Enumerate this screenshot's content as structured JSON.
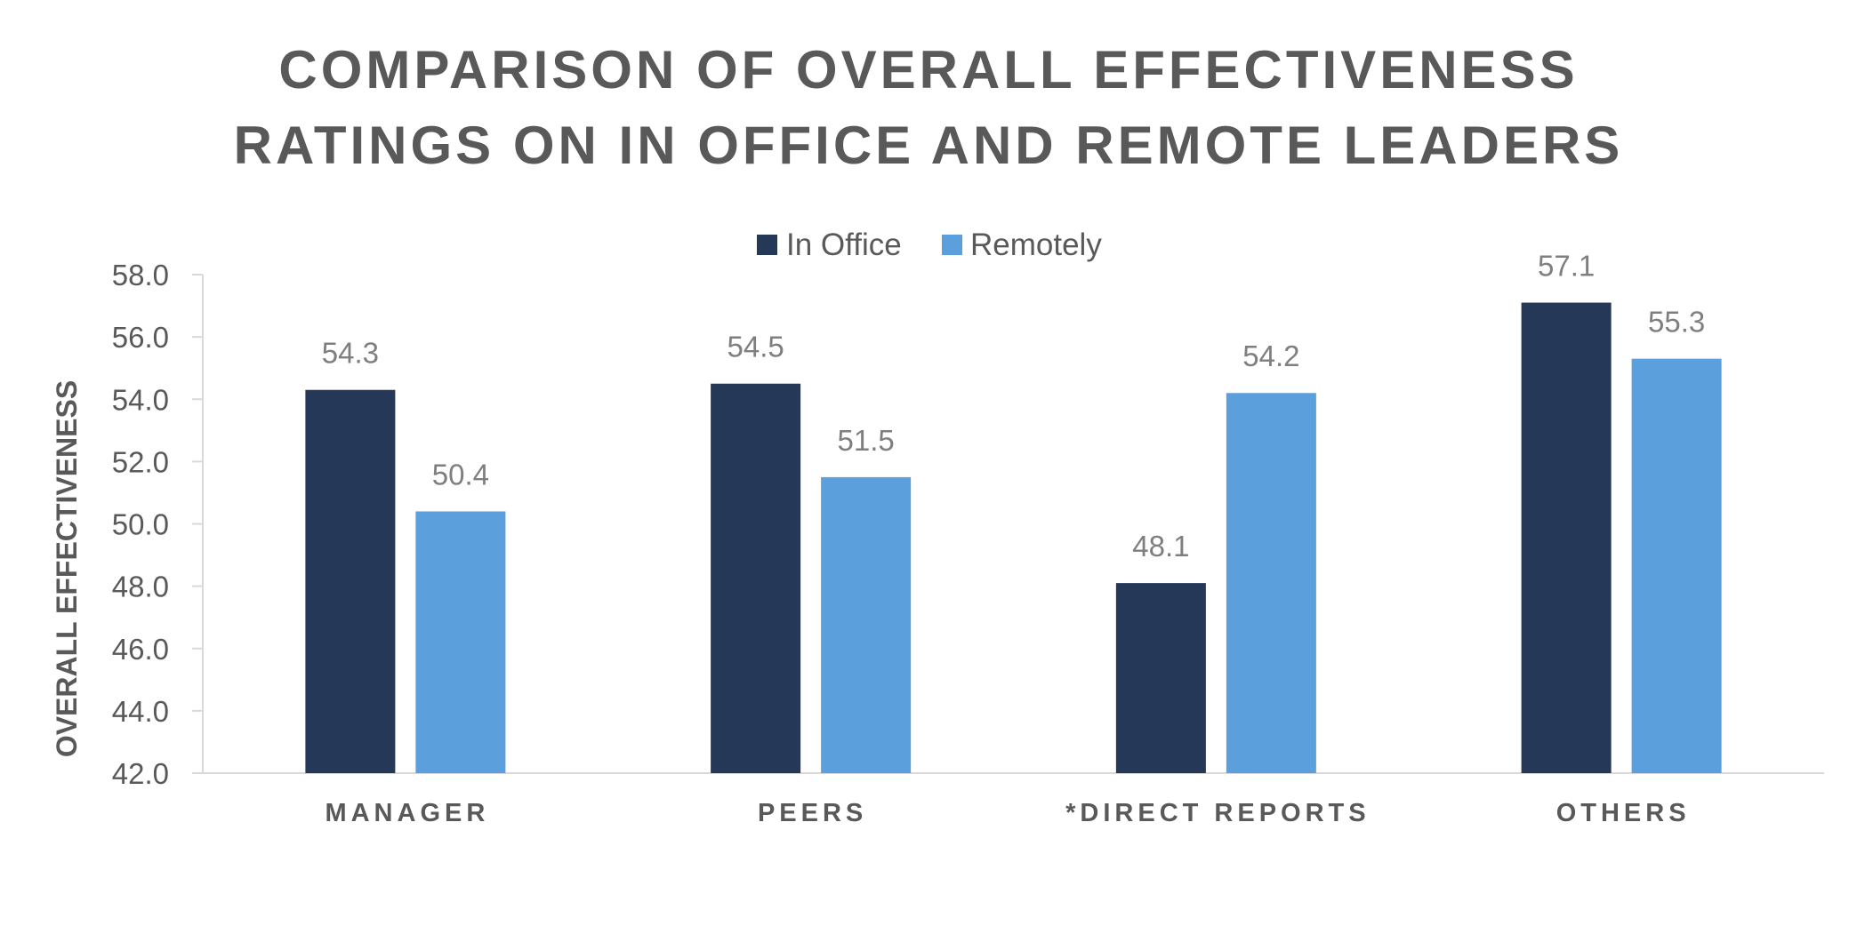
{
  "chart_data": {
    "type": "bar",
    "title_lines": [
      "COMPARISON OF OVERALL EFFECTIVENESS",
      "RATINGS ON IN OFFICE AND REMOTE LEADERS"
    ],
    "xlabel": "",
    "ylabel": "OVERALL EFFECTIVENESS",
    "ylim": [
      42.0,
      58.0
    ],
    "yticks": [
      "42.0",
      "44.0",
      "46.0",
      "48.0",
      "50.0",
      "52.0",
      "54.0",
      "56.0",
      "58.0"
    ],
    "categories": [
      "MANAGER",
      "PEERS",
      "*DIRECT REPORTS",
      "OTHERS"
    ],
    "series": [
      {
        "name": "In Office",
        "color": "#253858",
        "values": [
          54.3,
          54.5,
          48.1,
          57.1
        ],
        "labels": [
          "54.3",
          "54.5",
          "48.1",
          "57.1"
        ]
      },
      {
        "name": "Remotely",
        "color": "#5B9FDC",
        "values": [
          50.4,
          51.5,
          54.2,
          55.3
        ],
        "labels": [
          "50.4",
          "51.5",
          "54.2",
          "55.3"
        ]
      }
    ],
    "legend_position": "top",
    "grid": false
  }
}
